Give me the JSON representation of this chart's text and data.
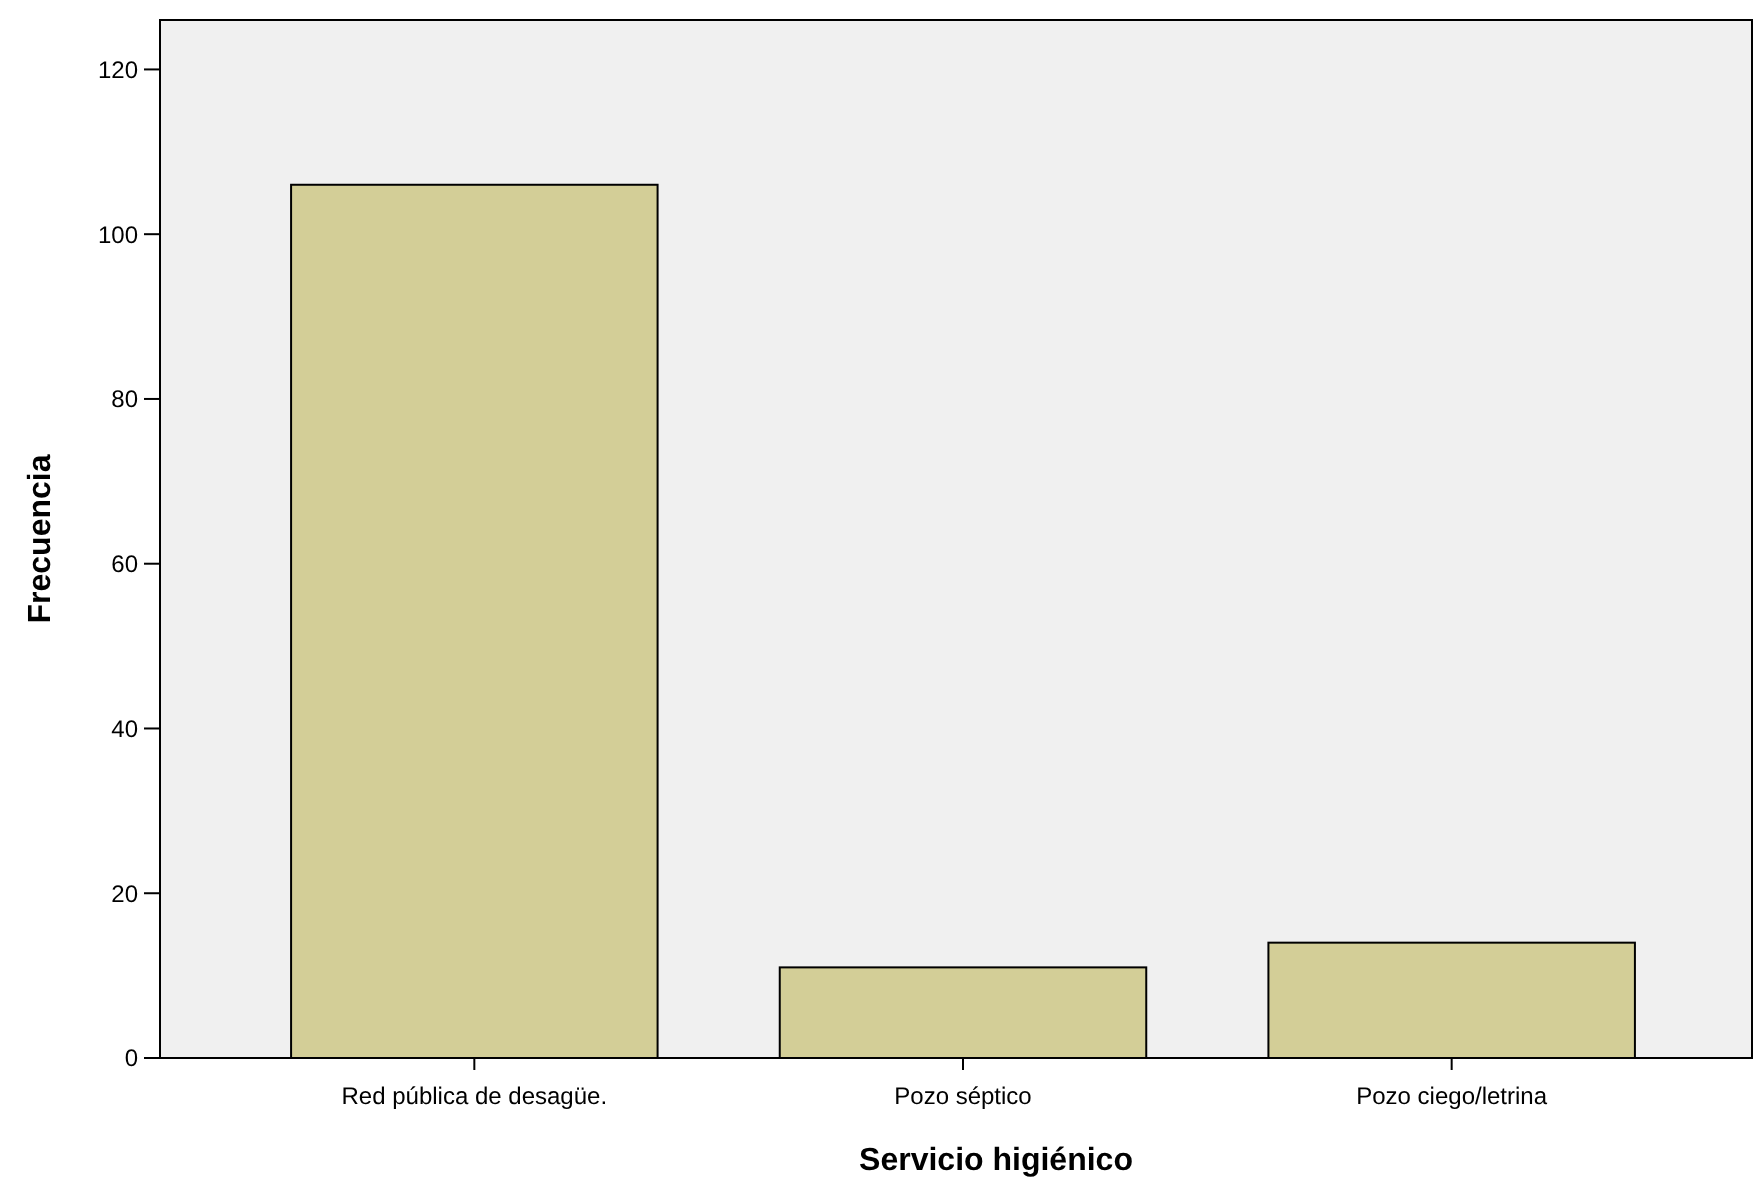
{
  "chart_data": {
    "type": "bar",
    "xlabel": "Servicio higiénico",
    "ylabel": "Frecuencia",
    "categories": [
      "Red pública de desagüe.",
      "Pozo séptico",
      "Pozo ciego/letrina"
    ],
    "values": [
      106,
      11,
      14
    ],
    "color": "#d3ce97",
    "ylim": [
      0,
      126
    ],
    "yticks": [
      0,
      20,
      40,
      60,
      80,
      100,
      120
    ],
    "grid": false
  }
}
